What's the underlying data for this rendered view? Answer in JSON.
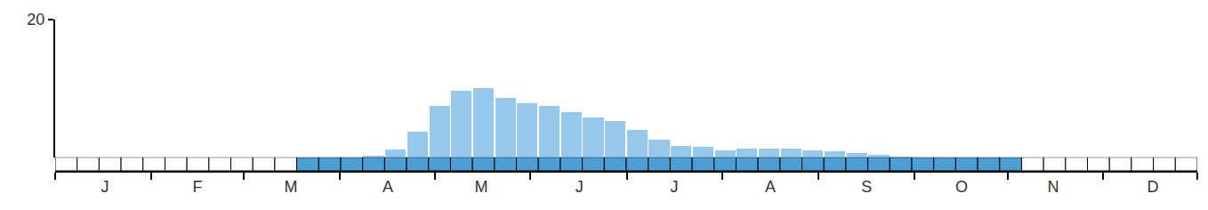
{
  "chart_data": {
    "type": "bar",
    "x": [
      0.5,
      1.5,
      2.5,
      3.5,
      4.5,
      5.5,
      6.5,
      7.5,
      8.5,
      9.5,
      10.5,
      11.5,
      12.5,
      13.5,
      14.5,
      15.5,
      16.5,
      17.5,
      18.5,
      19.5,
      20.5,
      21.5,
      22.5,
      23.5,
      24.5,
      25.5,
      26.5,
      27.5,
      28.5,
      29.5,
      30.5,
      31.5,
      32.5,
      33.5,
      34.5,
      35.5,
      36.5,
      37.5,
      38.5,
      39.5,
      40.5,
      41.5,
      42.5,
      43.5,
      44.5,
      45.5,
      46.5,
      47.5,
      48.5,
      49.5,
      50.5,
      51.5
    ],
    "values": [
      0,
      0,
      0,
      0,
      0,
      0,
      0,
      0,
      0,
      0,
      0,
      0,
      0,
      0,
      0.2,
      1.1,
      3.7,
      7.4,
      9.6,
      10.1,
      8.6,
      7.8,
      7.4,
      6.5,
      5.8,
      5.3,
      4.0,
      2.5,
      1.7,
      1.5,
      1.0,
      1.2,
      1.2,
      1.3,
      1.0,
      0.9,
      0.6,
      0.4,
      0.1,
      0,
      0,
      0,
      0,
      0,
      0,
      0,
      0,
      0,
      0,
      0,
      0,
      0
    ],
    "color": "#95c8ea",
    "presence": [
      0,
      0,
      0,
      0,
      0,
      0,
      0,
      0,
      0,
      0,
      0,
      1,
      1,
      1,
      1,
      1,
      1,
      1,
      1,
      1,
      1,
      1,
      1,
      1,
      1,
      1,
      1,
      1,
      1,
      1,
      1,
      1,
      1,
      1,
      1,
      1,
      1,
      1,
      1,
      1,
      1,
      1,
      1,
      1,
      0,
      0,
      0,
      0,
      0,
      0,
      0,
      0
    ],
    "presence_color": "#4b9fd4",
    "xlim": [
      0,
      52
    ],
    "xticks": [
      {
        "value": 2.27,
        "label": "J"
      },
      {
        "value": 6.48,
        "label": "F"
      },
      {
        "value": 10.73,
        "label": "M"
      },
      {
        "value": 15.15,
        "label": "A"
      },
      {
        "value": 19.4,
        "label": "M"
      },
      {
        "value": 23.86,
        "label": "J"
      },
      {
        "value": 28.19,
        "label": "J"
      },
      {
        "value": 32.56,
        "label": "A"
      },
      {
        "value": 36.94,
        "label": "S"
      },
      {
        "value": 41.27,
        "label": "O"
      },
      {
        "value": 45.44,
        "label": "N"
      },
      {
        "value": 49.98,
        "label": "D"
      }
    ],
    "ylim": [
      0,
      20
    ],
    "yticks": [
      20
    ],
    "grid": false
  }
}
